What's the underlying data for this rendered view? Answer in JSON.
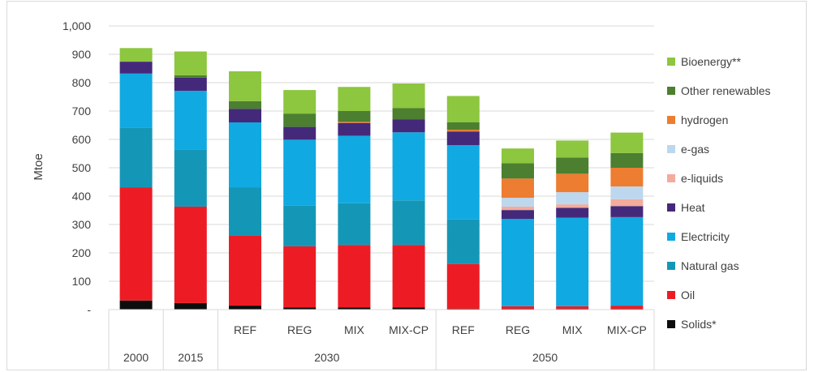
{
  "chart_data": {
    "type": "bar",
    "stacked": true,
    "ylabel": "Mtoe",
    "ylim": [
      0,
      1000
    ],
    "yticks": [
      "-",
      "100",
      "200",
      "300",
      "400",
      "500",
      "600",
      "700",
      "800",
      "900",
      "1,000"
    ],
    "grid": true,
    "legend_position": "right",
    "categories": [
      "2000",
      "2015",
      "REF",
      "REG",
      "MIX",
      "MIX-CP",
      "REF",
      "REG",
      "MIX",
      "MIX-CP"
    ],
    "groups": [
      {
        "label": "2000",
        "members": [
          "2000"
        ]
      },
      {
        "label": "2015",
        "members": [
          "2015"
        ]
      },
      {
        "label": "2030",
        "members": [
          "REF",
          "REG",
          "MIX",
          "MIX-CP"
        ]
      },
      {
        "label": "2050",
        "members": [
          "REF",
          "REG",
          "MIX",
          "MIX-CP"
        ]
      }
    ],
    "series": [
      {
        "name": "Solids*",
        "color": "#0d0d0d",
        "values": [
          32,
          23,
          14,
          8,
          8,
          8,
          3,
          3,
          3,
          3
        ]
      },
      {
        "name": "Oil",
        "color": "#ed1c24",
        "values": [
          398,
          340,
          248,
          215,
          220,
          220,
          158,
          9,
          9,
          11
        ]
      },
      {
        "name": "Natural gas",
        "color": "#1497b7",
        "values": [
          212,
          200,
          168,
          143,
          147,
          157,
          157,
          0,
          0,
          0
        ]
      },
      {
        "name": "Electricity",
        "color": "#11a9e1",
        "values": [
          190,
          208,
          230,
          233,
          238,
          240,
          262,
          308,
          312,
          312
        ]
      },
      {
        "name": "Heat",
        "color": "#44297a",
        "values": [
          42,
          47,
          48,
          45,
          45,
          45,
          48,
          31,
          35,
          39
        ]
      },
      {
        "name": "e-liquids",
        "color": "#f4ab9b",
        "values": [
          0,
          0,
          0,
          0,
          0,
          0,
          0,
          12,
          12,
          24
        ]
      },
      {
        "name": "e-gas",
        "color": "#bdd7ee",
        "values": [
          0,
          0,
          0,
          0,
          0,
          0,
          0,
          31,
          43,
          45
        ]
      },
      {
        "name": "hydrogen",
        "color": "#ed7d31",
        "values": [
          0,
          0,
          0,
          0,
          4,
          0,
          6,
          68,
          65,
          66
        ]
      },
      {
        "name": "Other renewables",
        "color": "#4c7f30",
        "values": [
          0,
          8,
          27,
          47,
          38,
          40,
          26,
          54,
          57,
          52
        ]
      },
      {
        "name": "Bioenergy**",
        "color": "#8dc63f",
        "values": [
          48,
          84,
          105,
          83,
          85,
          87,
          93,
          52,
          60,
          72
        ]
      }
    ]
  }
}
